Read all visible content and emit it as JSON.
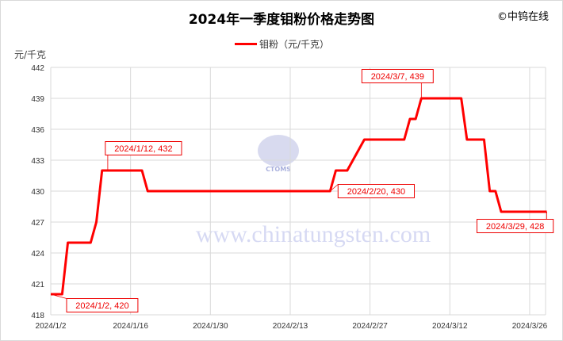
{
  "header": {
    "copyright": "©中钨在线"
  },
  "watermark": {
    "logo_text": "CTOMS",
    "url": "www.chinatungsten.com"
  },
  "chart_data": {
    "type": "line",
    "title": "2024年一季度钼粉价格走势图",
    "ylabel": "元/千克",
    "xlabel": "",
    "ylim": [
      418,
      442
    ],
    "yticks": [
      418,
      421,
      424,
      427,
      430,
      433,
      436,
      439,
      442
    ],
    "xticks": [
      "2024/1/2",
      "2024/1/16",
      "2024/1/30",
      "2024/2/13",
      "2024/2/27",
      "2024/3/12",
      "2024/3/26"
    ],
    "grid": true,
    "legend": "top",
    "series": [
      {
        "name": "钼粉（元/千克）",
        "color": "#ff0000",
        "x": [
          "2024/1/2",
          "2024/1/3",
          "2024/1/4",
          "2024/1/5",
          "2024/1/8",
          "2024/1/9",
          "2024/1/10",
          "2024/1/11",
          "2024/1/12",
          "2024/1/15",
          "2024/1/16",
          "2024/1/17",
          "2024/1/18",
          "2024/1/19",
          "2024/1/22",
          "2024/1/26",
          "2024/2/1",
          "2024/2/8",
          "2024/2/19",
          "2024/2/20",
          "2024/2/21",
          "2024/2/22",
          "2024/2/23",
          "2024/2/26",
          "2024/2/27",
          "2024/2/28",
          "2024/2/29",
          "2024/3/1",
          "2024/3/4",
          "2024/3/5",
          "2024/3/6",
          "2024/3/7",
          "2024/3/8",
          "2024/3/11",
          "2024/3/12",
          "2024/3/13",
          "2024/3/14",
          "2024/3/15",
          "2024/3/18",
          "2024/3/19",
          "2024/3/20",
          "2024/3/21",
          "2024/3/22",
          "2024/3/25",
          "2024/3/26",
          "2024/3/27",
          "2024/3/28",
          "2024/3/29"
        ],
        "values": [
          420,
          420,
          420,
          425,
          425,
          425,
          427,
          432,
          432,
          432,
          432,
          432,
          432,
          430,
          430,
          430,
          430,
          430,
          430,
          430,
          432,
          432,
          432,
          435,
          435,
          435,
          435,
          435,
          435,
          437,
          437,
          439,
          439,
          439,
          439,
          439,
          439,
          435,
          435,
          430,
          430,
          428,
          428,
          428,
          428,
          428,
          428,
          428
        ]
      }
    ],
    "annotations": [
      {
        "x": "2024/1/2",
        "y": 420,
        "text": "2024/1/2, 420"
      },
      {
        "x": "2024/1/12",
        "y": 432,
        "text": "2024/1/12, 432"
      },
      {
        "x": "2024/2/20",
        "y": 430,
        "text": "2024/2/20, 430"
      },
      {
        "x": "2024/3/7",
        "y": 439,
        "text": "2024/3/7, 439"
      },
      {
        "x": "2024/3/29",
        "y": 428,
        "text": "2024/3/29, 428"
      }
    ]
  }
}
